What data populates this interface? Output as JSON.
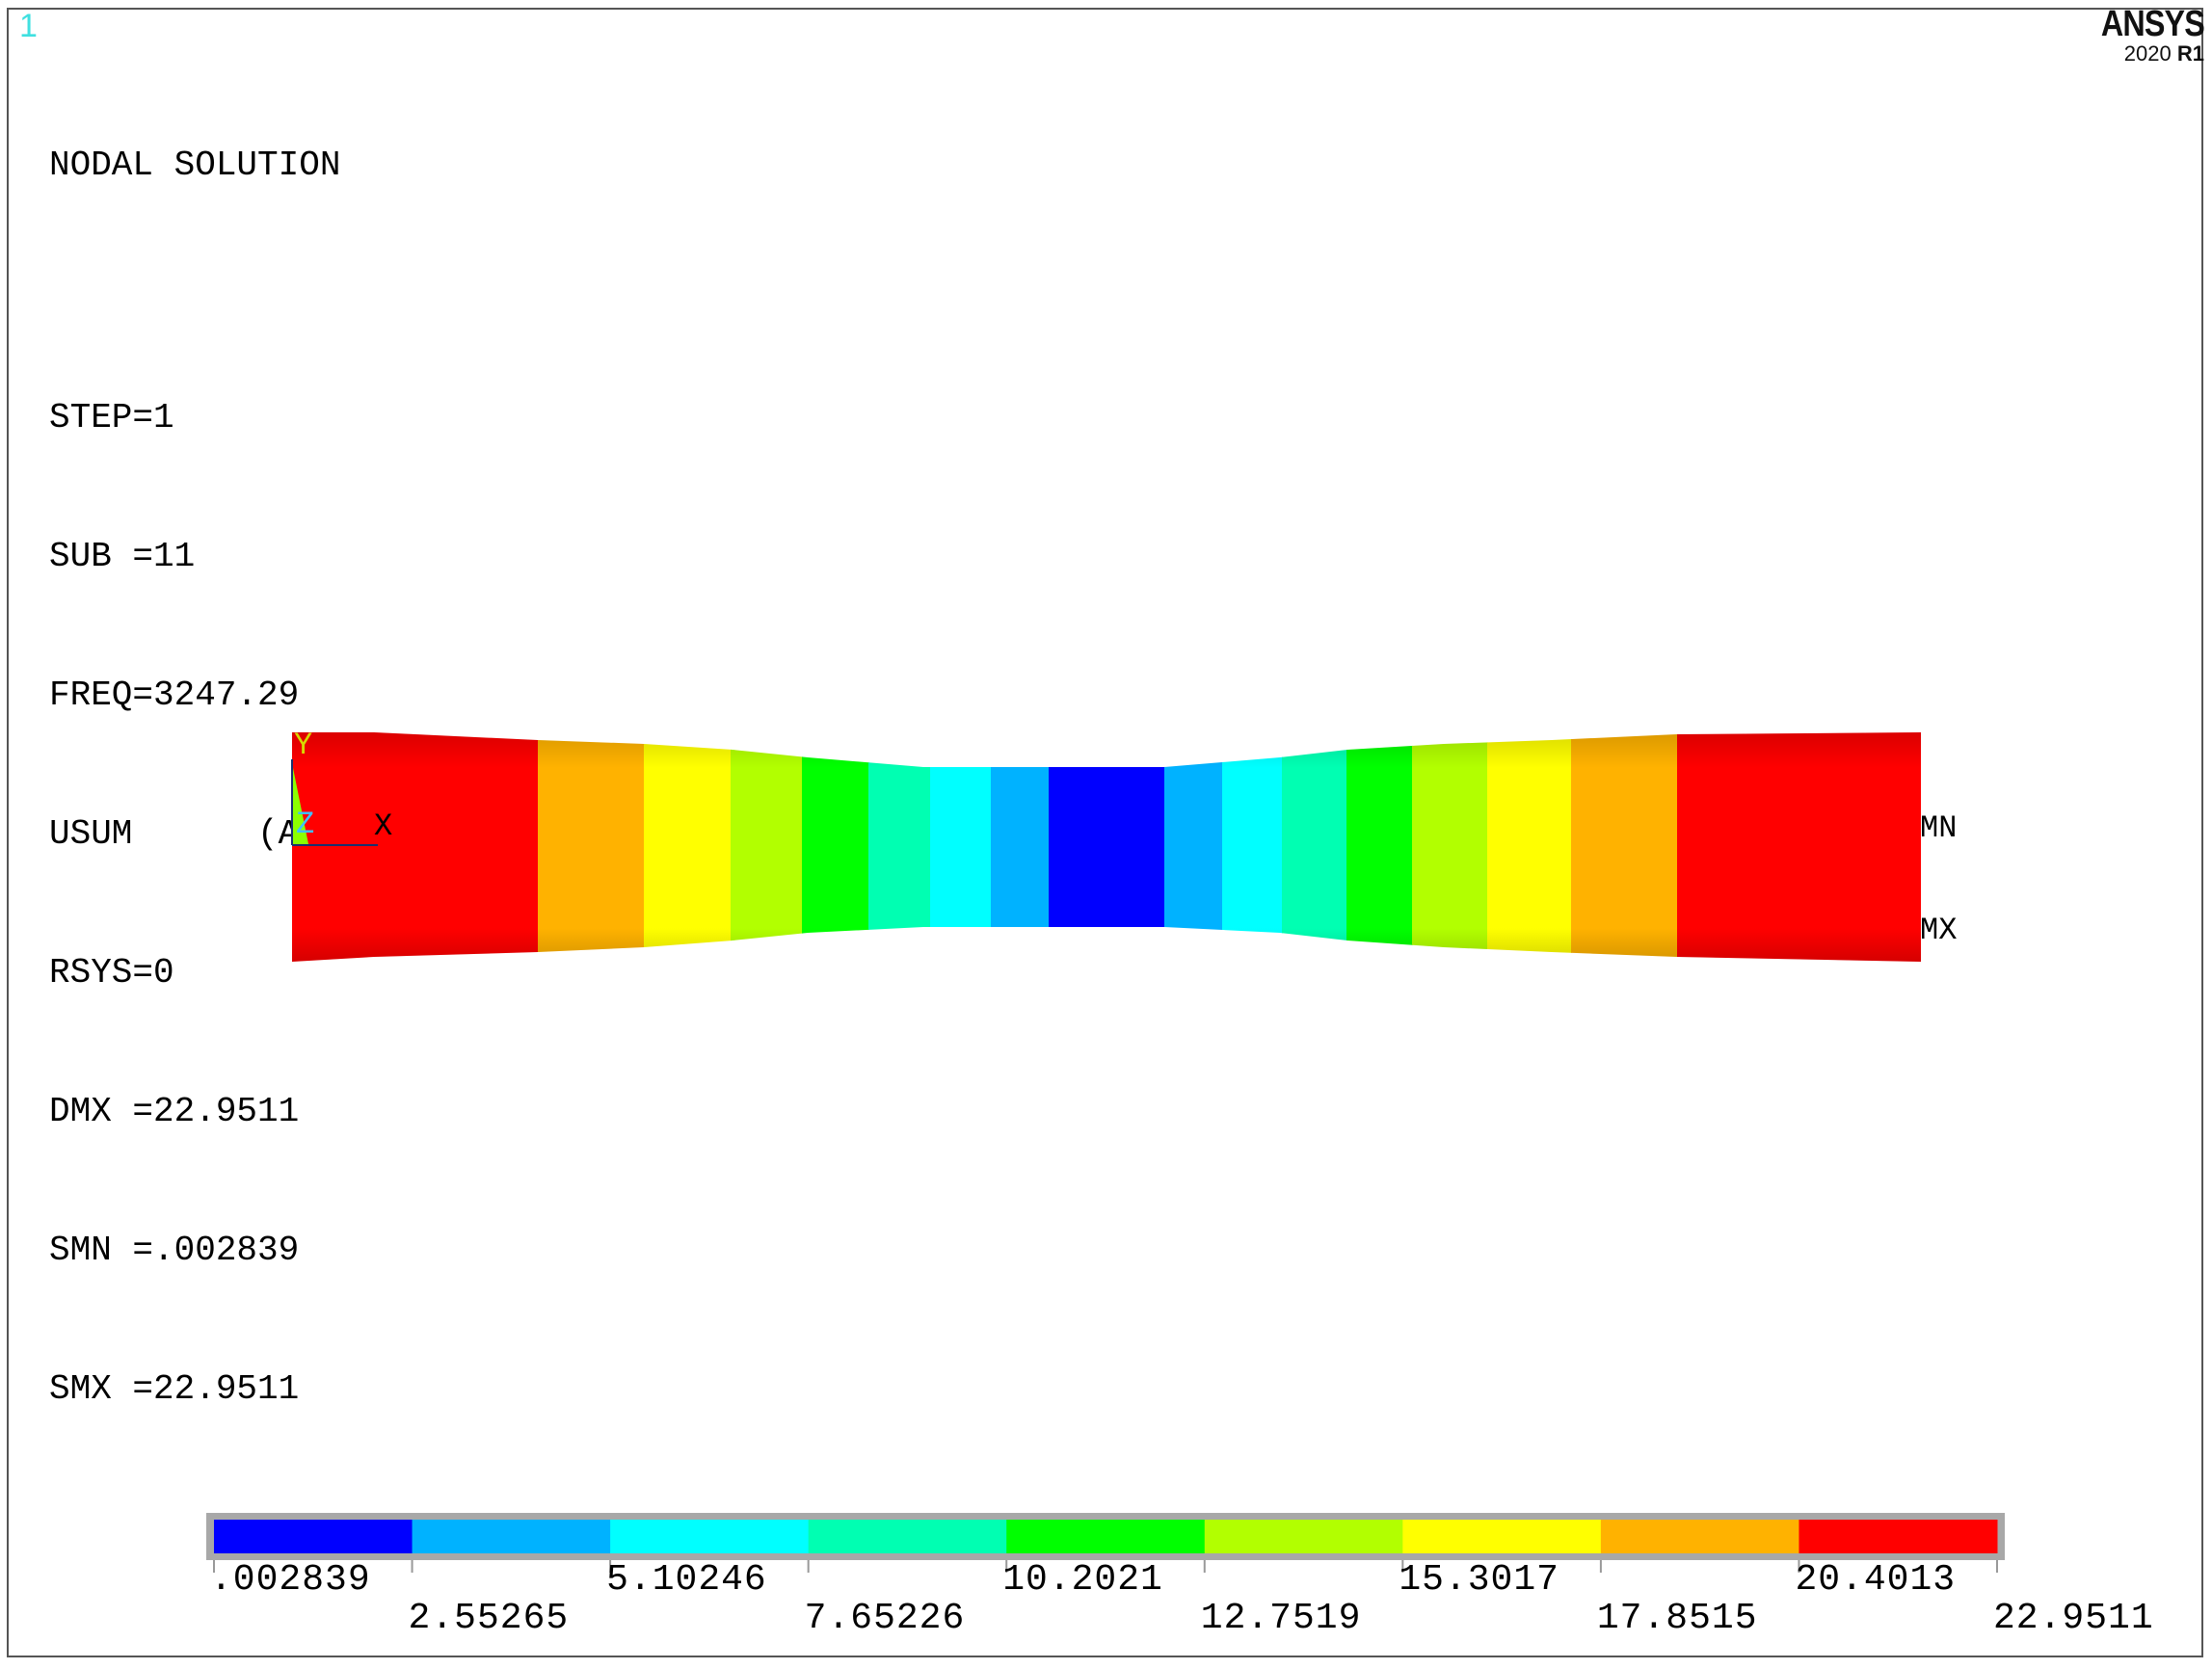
{
  "window_number": "1",
  "logo": {
    "brand": "ANSYS",
    "version_prefix": "2020",
    "version_suffix": "R1"
  },
  "info": {
    "title": "NODAL SOLUTION",
    "lines": [
      "STEP=1",
      "SUB =11",
      "FREQ=3247.29",
      "USUM      (AVG)",
      "RSYS=0",
      "DMX =22.9511",
      "SMN =.002839",
      "SMX =22.9511"
    ]
  },
  "triad": {
    "y_label": "Y",
    "z_label": "Z",
    "x_label": "X"
  },
  "markers": {
    "min_label": "MN",
    "max_label": "MX"
  },
  "legend": {
    "colors": [
      "#0000ff",
      "#00b2ff",
      "#00ffff",
      "#00ffb2",
      "#00ff00",
      "#b2ff00",
      "#ffff00",
      "#ffb200",
      "#ff0000"
    ],
    "values_top": [
      ".002839",
      "5.10246",
      "10.2021",
      "15.3017",
      "20.4013"
    ],
    "values_bottom": [
      "2.55265",
      "7.65226",
      "12.7519",
      "17.8515",
      "22.9511"
    ]
  },
  "model_band_colors": [
    "#ff0000",
    "#ffb200",
    "#ffff00",
    "#b2ff00",
    "#00ff00",
    "#00ffb2",
    "#00ffff",
    "#00b2ff",
    "#0000ff",
    "#00b2ff",
    "#00ffff",
    "#00ffb2",
    "#00ff00",
    "#b2ff00",
    "#ffff00",
    "#ffb200",
    "#ff0000"
  ]
}
